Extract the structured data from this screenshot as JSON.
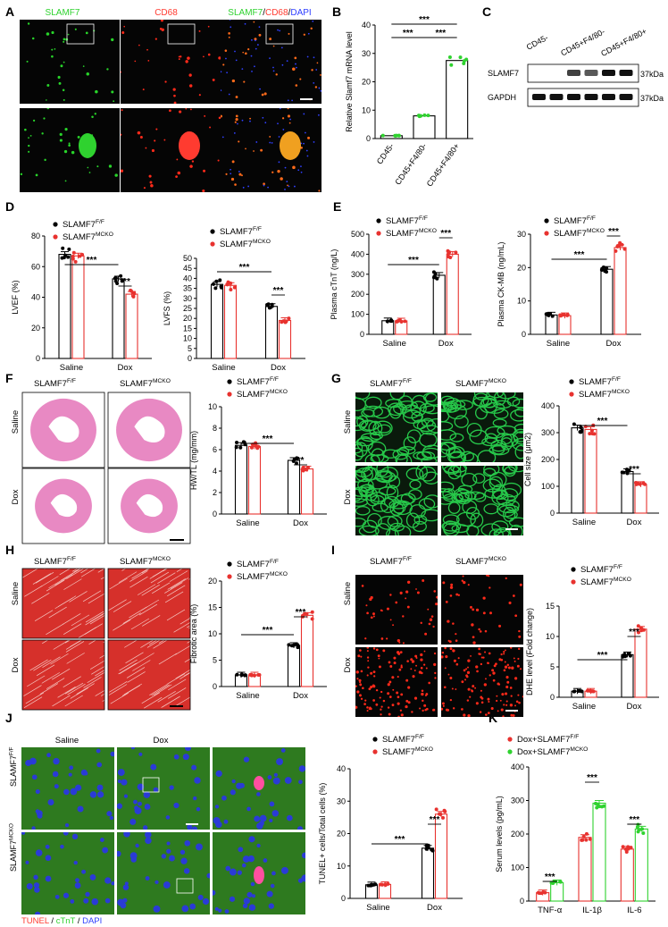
{
  "colors": {
    "control": "#000000",
    "mcko": "#e8322f",
    "green": "#2fd22f",
    "he_pink": "#e889c3",
    "wga_green": "#27c84a",
    "masson_red": "#d6302b",
    "dhe_red": "#ff2a1a"
  },
  "panel_letters": [
    "A",
    "B",
    "C",
    "D",
    "E",
    "F",
    "G",
    "H",
    "I",
    "J",
    "K"
  ],
  "legend": {
    "ff": "SLAMF7",
    "ff_sup": "F/F",
    "mcko": "SLAMF7",
    "mcko_sup": "MCKO",
    "k_ff": "Dox+SLAMF7",
    "k_ff_sup": "F/F",
    "k_mcko": "Dox+SLAMF7",
    "k_mcko_sup": "MCKO"
  },
  "sig": {
    "three": "***",
    "two": "**"
  },
  "panelA": {
    "channels": [
      "SLAMF7",
      "CD68",
      "SLAMF7/CD68/DAPI"
    ],
    "merge_parts": [
      "SLAMF7",
      "/",
      "CD68",
      "/",
      "DAPI"
    ]
  },
  "panelC": {
    "lanes": [
      "CD45-",
      "CD45+F4/80-",
      "CD45+F4/80+"
    ],
    "bands": [
      "SLAMF7",
      "GAPDH"
    ],
    "sizes": [
      "37kDa",
      "37kDa"
    ]
  },
  "images": {
    "f_cols": [
      "SLAMF7F/F",
      "SLAMF7MCKO"
    ],
    "rows": [
      "Saline",
      "Dox"
    ],
    "j_cols": [
      "Saline",
      "Dox"
    ],
    "j_rows": [
      "SLAMF7F/F",
      "SLAMF7MCKO"
    ],
    "j_stain": [
      "TUNEL",
      "/",
      "cTnT",
      "/",
      "DAPI"
    ]
  },
  "chart_data": [
    {
      "id": "B",
      "type": "bar",
      "categories": [
        "CD45-",
        "CD45+F4/80-",
        "CD45+F4/80+"
      ],
      "values": [
        1,
        8,
        27.5
      ],
      "errors": [
        0.3,
        0.8,
        1.0
      ],
      "ylabel": "Relative Slamf7 mRNA level",
      "ylim": [
        0,
        40
      ],
      "yticks": [
        0,
        10,
        20,
        30,
        40
      ],
      "significance": [
        {
          "from": 0,
          "to": 1,
          "label": "***"
        },
        {
          "from": 1,
          "to": 2,
          "label": "***"
        },
        {
          "from": 0,
          "to": 2,
          "label": "***"
        }
      ]
    },
    {
      "id": "D1",
      "type": "bar",
      "categories": [
        "Saline",
        "Dox"
      ],
      "series": [
        {
          "name": "SLAMF7F/F",
          "values": [
            68,
            52
          ]
        },
        {
          "name": "SLAMF7MCKO",
          "values": [
            67,
            42
          ]
        }
      ],
      "ylabel": "LVEF (%)",
      "ylim": [
        0,
        80
      ],
      "yticks": [
        0,
        20,
        40,
        60,
        80
      ]
    },
    {
      "id": "D2",
      "type": "bar",
      "categories": [
        "Saline",
        "Dox"
      ],
      "series": [
        {
          "name": "SLAMF7F/F",
          "values": [
            37,
            26
          ]
        },
        {
          "name": "SLAMF7MCKO",
          "values": [
            36.5,
            19
          ]
        }
      ],
      "ylabel": "LVFS (%)",
      "ylim": [
        0,
        50
      ],
      "yticks": [
        0,
        5,
        10,
        15,
        20,
        25,
        30,
        35,
        40,
        45,
        50
      ]
    },
    {
      "id": "E1",
      "type": "bar",
      "categories": [
        "Saline",
        "Dox"
      ],
      "series": [
        {
          "name": "SLAMF7F/F",
          "values": [
            68,
            295
          ]
        },
        {
          "name": "SLAMF7MCKO",
          "values": [
            67,
            400
          ]
        }
      ],
      "ylabel": "Plasma cTnT (ng/L)",
      "ylim": [
        0,
        500
      ],
      "yticks": [
        0,
        100,
        200,
        300,
        400,
        500
      ]
    },
    {
      "id": "E2",
      "type": "bar",
      "categories": [
        "Saline",
        "Dox"
      ],
      "series": [
        {
          "name": "SLAMF7F/F",
          "values": [
            5.8,
            19.5
          ]
        },
        {
          "name": "SLAMF7MCKO",
          "values": [
            5.6,
            26
          ]
        }
      ],
      "ylabel": "Plasma CK-MB (ng/mL)",
      "ylim": [
        0,
        30
      ],
      "yticks": [
        0,
        10,
        20,
        30
      ]
    },
    {
      "id": "F",
      "type": "bar",
      "categories": [
        "Saline",
        "Dox"
      ],
      "series": [
        {
          "name": "SLAMF7F/F",
          "values": [
            6.4,
            5.0
          ]
        },
        {
          "name": "SLAMF7MCKO",
          "values": [
            6.3,
            4.2
          ]
        }
      ],
      "ylabel": "HW/TL (mg/mm)",
      "ylim": [
        0,
        10
      ],
      "yticks": [
        0,
        2,
        4,
        6,
        8,
        10
      ]
    },
    {
      "id": "G",
      "type": "bar",
      "categories": [
        "Saline",
        "Dox"
      ],
      "series": [
        {
          "name": "SLAMF7F/F",
          "values": [
            318,
            155
          ]
        },
        {
          "name": "SLAMF7MCKO",
          "values": [
            312,
            107
          ]
        }
      ],
      "ylabel": "Cell size (μm2)",
      "ylim": [
        0,
        400
      ],
      "yticks": [
        0,
        100,
        200,
        300,
        400
      ]
    },
    {
      "id": "H",
      "type": "bar",
      "categories": [
        "Saline",
        "Dox"
      ],
      "series": [
        {
          "name": "SLAMF7F/F",
          "values": [
            2.2,
            7.8
          ]
        },
        {
          "name": "SLAMF7MCKO",
          "values": [
            2.2,
            13.5
          ]
        }
      ],
      "ylabel": "Fibrotic area (%)",
      "ylim": [
        0,
        20
      ],
      "yticks": [
        0,
        5,
        10,
        15,
        20
      ]
    },
    {
      "id": "I",
      "type": "bar",
      "categories": [
        "Saline",
        "Dox"
      ],
      "series": [
        {
          "name": "SLAMF7F/F",
          "values": [
            1.0,
            7.0
          ]
        },
        {
          "name": "SLAMF7MCKO",
          "values": [
            1.0,
            11.2
          ]
        }
      ],
      "ylabel": "DHE level (Fold change)",
      "ylim": [
        0,
        15
      ],
      "yticks": [
        0,
        5,
        10,
        15
      ]
    },
    {
      "id": "J",
      "type": "bar",
      "categories": [
        "Saline",
        "Dox"
      ],
      "series": [
        {
          "name": "SLAMF7F/F",
          "values": [
            4.2,
            15.5
          ]
        },
        {
          "name": "SLAMF7MCKO",
          "values": [
            4.3,
            26
          ]
        }
      ],
      "ylabel": "TUNEL+ cells/Total cells (%)",
      "ylim": [
        0,
        40
      ],
      "yticks": [
        0,
        10,
        20,
        30,
        40
      ]
    },
    {
      "id": "K",
      "type": "bar",
      "categories": [
        "TNF-α",
        "IL-1β",
        "IL-6"
      ],
      "series": [
        {
          "name": "Dox+SLAMF7F/F",
          "values": [
            25,
            190,
            155
          ]
        },
        {
          "name": "Dox+SLAMF7MCKO",
          "values": [
            55,
            292,
            215
          ]
        }
      ],
      "ylabel": "Serum levels (pg/mL)",
      "ylim": [
        0,
        400
      ],
      "yticks": [
        0,
        100,
        200,
        300,
        400
      ]
    }
  ]
}
